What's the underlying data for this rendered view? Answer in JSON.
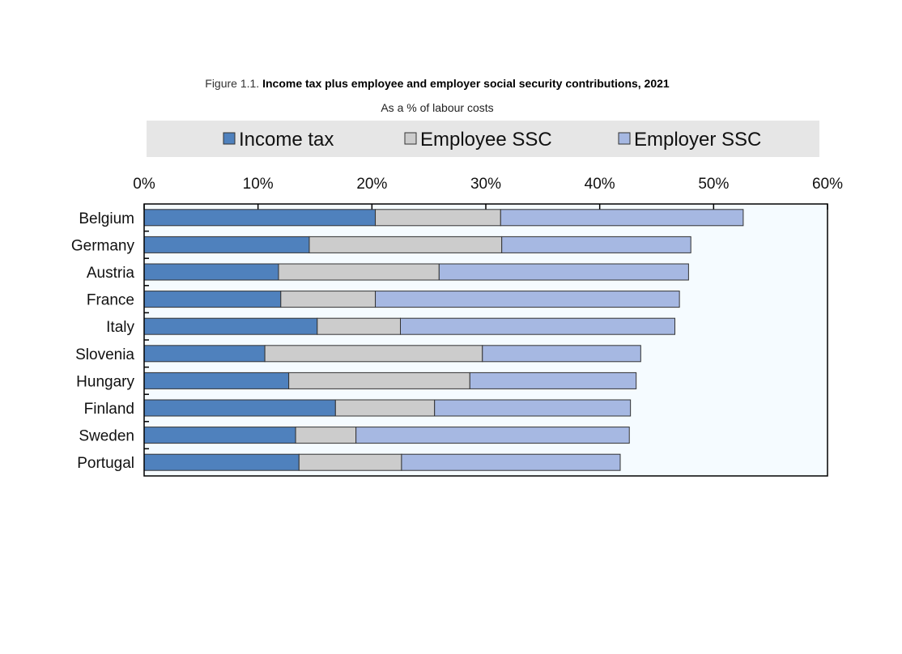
{
  "chart_data": {
    "type": "bar",
    "orientation": "horizontal",
    "stacked": true,
    "title_prefix": "Figure 1.1.",
    "title": "Income tax plus employee and employer social security contributions, 2021",
    "subtitle": "As a % of labour costs",
    "xlim": [
      0,
      60
    ],
    "x_ticks": [
      "0%",
      "10%",
      "20%",
      "30%",
      "40%",
      "50%",
      "60%"
    ],
    "legend_placement": "top",
    "categories": [
      "Belgium",
      "Germany",
      "Austria",
      "France",
      "Italy",
      "Slovenia",
      "Hungary",
      "Finland",
      "Sweden",
      "Portugal"
    ],
    "series": [
      {
        "name": "Income tax",
        "color": "#4f81bd",
        "values": [
          20.3,
          14.5,
          11.8,
          12.0,
          15.2,
          10.6,
          12.7,
          16.8,
          13.3,
          13.6
        ]
      },
      {
        "name": "Employee SSC",
        "color": "#cccccc",
        "values": [
          11.0,
          16.9,
          14.1,
          8.3,
          7.3,
          19.1,
          15.9,
          8.7,
          5.3,
          9.0
        ]
      },
      {
        "name": "Employer SSC",
        "color": "#a6b8e2",
        "values": [
          21.3,
          16.6,
          21.9,
          26.7,
          24.1,
          13.9,
          14.6,
          17.2,
          24.0,
          19.2
        ]
      }
    ],
    "plot_background": "#f5fbff",
    "legend_background": "#e6e6e6"
  }
}
